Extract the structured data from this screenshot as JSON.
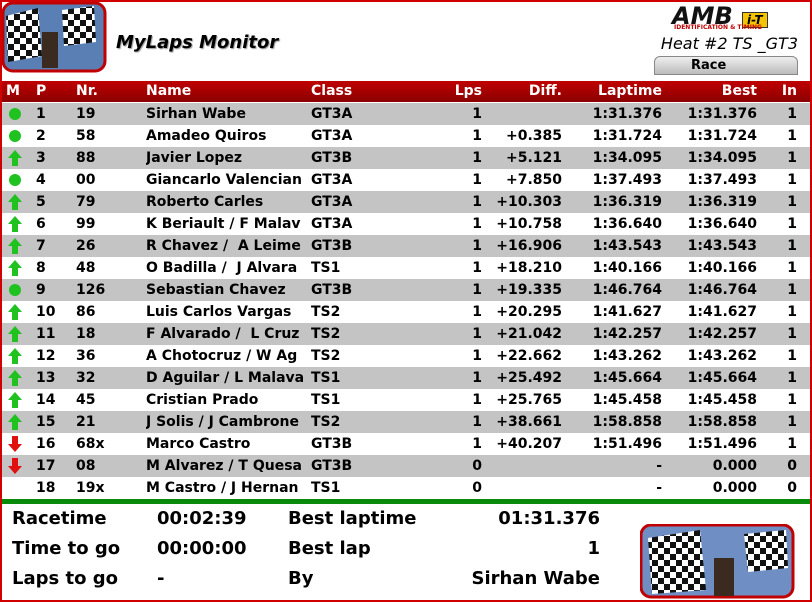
{
  "header": {
    "brand": "AMB",
    "brand_badge": "i-T",
    "brand_tagline": "IDENTIFICATION & TIMING",
    "title": "MyLaps Monitor",
    "heat": "Heat #2 TS _GT3",
    "tab": "Race"
  },
  "table": {
    "columns": [
      "M",
      "P",
      "Nr.",
      "Name",
      "Class",
      "Lps",
      "Diff.",
      "Laptime",
      "Best",
      "In"
    ],
    "rows": [
      {
        "status": "same",
        "cells": [
          null,
          "1",
          "19",
          "Sirhan Wabe",
          "GT3A",
          "1",
          null,
          "1:31.376",
          "1:31.376",
          "1"
        ]
      },
      {
        "status": "same",
        "cells": [
          null,
          "2",
          "58",
          "Amadeo Quiros",
          "GT3A",
          "1",
          "+0.385",
          "1:31.724",
          "1:31.724",
          "1"
        ]
      },
      {
        "status": "up",
        "cells": [
          null,
          "3",
          "88",
          "Javier Lopez",
          "GT3B",
          "1",
          "+5.121",
          "1:34.095",
          "1:34.095",
          "1"
        ]
      },
      {
        "status": "same",
        "cells": [
          null,
          "4",
          "00",
          "Giancarlo Valencian",
          "GT3A",
          "1",
          "+7.850",
          "1:37.493",
          "1:37.493",
          "1"
        ]
      },
      {
        "status": "up",
        "cells": [
          null,
          "5",
          "79",
          "Roberto Carles",
          "GT3A",
          "1",
          "+10.303",
          "1:36.319",
          "1:36.319",
          "1"
        ]
      },
      {
        "status": "up",
        "cells": [
          null,
          "6",
          "99",
          "K Beriault / F Malav",
          "GT3A",
          "1",
          "+10.758",
          "1:36.640",
          "1:36.640",
          "1"
        ]
      },
      {
        "status": "up",
        "cells": [
          null,
          "7",
          "26",
          "R Chavez /  A Leime",
          "GT3B",
          "1",
          "+16.906",
          "1:43.543",
          "1:43.543",
          "1"
        ]
      },
      {
        "status": "up",
        "cells": [
          null,
          "8",
          "48",
          "O Badilla /  J Alvara",
          "TS1",
          "1",
          "+18.210",
          "1:40.166",
          "1:40.166",
          "1"
        ]
      },
      {
        "status": "same",
        "cells": [
          null,
          "9",
          "126",
          "Sebastian Chavez",
          "GT3B",
          "1",
          "+19.335",
          "1:46.764",
          "1:46.764",
          "1"
        ]
      },
      {
        "status": "up",
        "cells": [
          null,
          "10",
          "86",
          "Luis Carlos Vargas",
          "TS2",
          "1",
          "+20.295",
          "1:41.627",
          "1:41.627",
          "1"
        ]
      },
      {
        "status": "up",
        "cells": [
          null,
          "11",
          "18",
          "F Alvarado /  L Cruz",
          "TS2",
          "1",
          "+21.042",
          "1:42.257",
          "1:42.257",
          "1"
        ]
      },
      {
        "status": "up",
        "cells": [
          null,
          "12",
          "36",
          "A Chotocruz / W Ag",
          "TS2",
          "1",
          "+22.662",
          "1:43.262",
          "1:43.262",
          "1"
        ]
      },
      {
        "status": "up",
        "cells": [
          null,
          "13",
          "32",
          "D Aguilar / L Malava",
          "TS1",
          "1",
          "+25.492",
          "1:45.664",
          "1:45.664",
          "1"
        ]
      },
      {
        "status": "up",
        "cells": [
          null,
          "14",
          "45",
          "Cristian Prado",
          "TS1",
          "1",
          "+25.765",
          "1:45.458",
          "1:45.458",
          "1"
        ]
      },
      {
        "status": "up",
        "cells": [
          null,
          "15",
          "21",
          "J Solis / J Cambrone",
          "TS2",
          "1",
          "+38.661",
          "1:58.858",
          "1:58.858",
          "1"
        ]
      },
      {
        "status": "down",
        "cells": [
          null,
          "16",
          "68x",
          "Marco Castro",
          "GT3B",
          "1",
          "+40.207",
          "1:51.496",
          "1:51.496",
          "1"
        ]
      },
      {
        "status": "down",
        "cells": [
          null,
          "17",
          "08",
          "M Alvarez / T Quesa",
          "GT3B",
          "0",
          null,
          "-",
          "0.000",
          "0"
        ]
      },
      {
        "status": null,
        "cells": [
          null,
          "18",
          "19x",
          "M Castro / J Hernan",
          "TS1",
          "0",
          null,
          "-",
          "0.000",
          "0"
        ]
      }
    ]
  },
  "summary": [
    [
      {
        "label": "Racetime",
        "value": "00:02:39"
      },
      {
        "label": "Best laptime",
        "value": "01:31.376"
      }
    ],
    [
      {
        "label": "Time to go",
        "value": "00:00:00"
      },
      {
        "label": "Best lap",
        "value": "1"
      }
    ],
    [
      {
        "label": "Laps to go",
        "value": "-"
      },
      {
        "label": "By",
        "value": "Sirhan Wabe"
      }
    ]
  ]
}
